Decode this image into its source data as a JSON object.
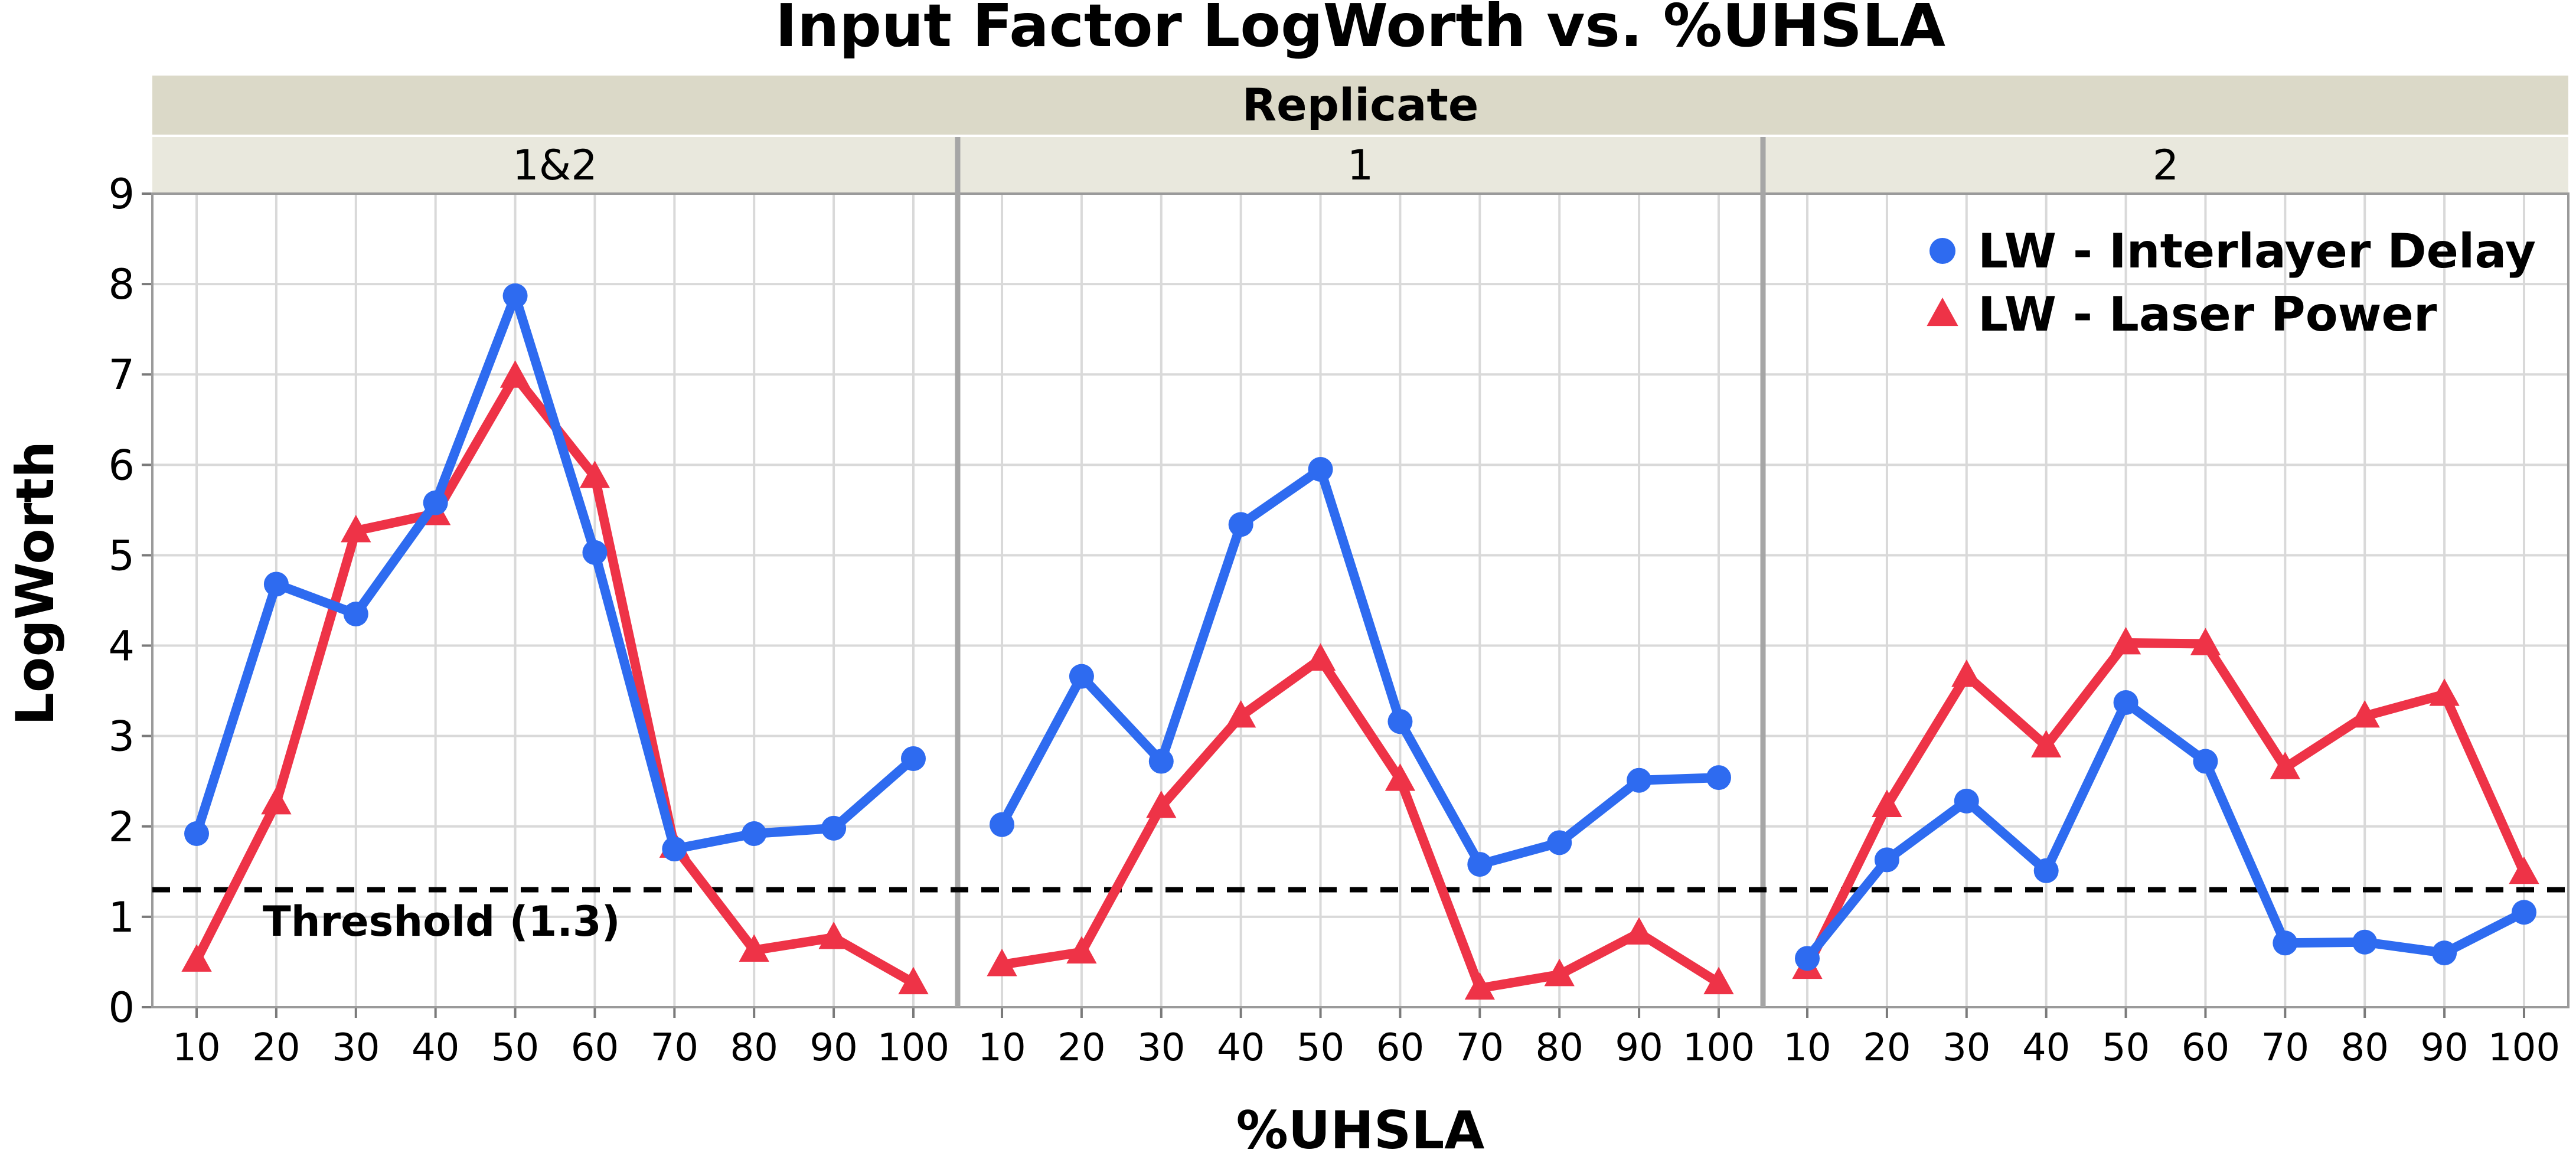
{
  "chart_data": {
    "type": "line",
    "title": "Input Factor LogWorth vs. %UHSLA",
    "xlabel": "%UHSLA",
    "ylabel": "LogWorth",
    "facet_group_label": "Replicate",
    "x": [
      10,
      20,
      30,
      40,
      50,
      60,
      70,
      80,
      90,
      100
    ],
    "x_tick_labels": [
      "10",
      "20",
      "30",
      "40",
      "50",
      "60",
      "70",
      "80",
      "90",
      "100"
    ],
    "ylim": [
      0,
      9
    ],
    "y_tick_labels": [
      "0",
      "1",
      "2",
      "3",
      "4",
      "5",
      "6",
      "7",
      "8",
      "9"
    ],
    "grid": true,
    "legend": {
      "placement": "top-right",
      "entries": [
        "LW - Interlayer Delay",
        "LW - Laser Power"
      ]
    },
    "threshold": {
      "value": 1.3,
      "label": "Threshold (1.3)"
    },
    "colors": {
      "LW - Interlayer Delay": "#2e6bf0",
      "LW - Laser Power": "#ee3347",
      "header_outer": "#dbd9c8",
      "header_inner": "#e9e8dd"
    },
    "facets": [
      {
        "label": "1&2",
        "series": [
          {
            "name": "LW - Interlayer Delay",
            "marker": "circle",
            "values": [
              1.92,
              4.68,
              4.35,
              5.58,
              7.87,
              5.03,
              1.75,
              1.92,
              1.98,
              2.75
            ]
          },
          {
            "name": "LW - Laser Power",
            "marker": "triangle",
            "values": [
              0.52,
              2.26,
              5.27,
              5.46,
              6.98,
              5.87,
              1.78,
              0.63,
              0.77,
              0.27
            ]
          }
        ]
      },
      {
        "label": "1",
        "series": [
          {
            "name": "LW - Interlayer Delay",
            "marker": "circle",
            "values": [
              2.02,
              3.66,
              2.72,
              5.34,
              5.95,
              3.16,
              1.58,
              1.82,
              2.51,
              2.54
            ]
          },
          {
            "name": "LW - Laser Power",
            "marker": "triangle",
            "values": [
              0.47,
              0.61,
              2.22,
              3.22,
              3.85,
              2.52,
              0.21,
              0.36,
              0.82,
              0.27
            ]
          }
        ]
      },
      {
        "label": "2",
        "series": [
          {
            "name": "LW - Interlayer Delay",
            "marker": "circle",
            "values": [
              0.54,
              1.63,
              2.28,
              1.51,
              3.37,
              2.72,
              0.71,
              0.72,
              0.6,
              1.05
            ]
          },
          {
            "name": "LW - Laser Power",
            "marker": "triangle",
            "values": [
              0.44,
              2.23,
              3.67,
              2.89,
              4.03,
              4.02,
              2.65,
              3.22,
              3.46,
              1.49
            ]
          }
        ]
      }
    ]
  }
}
